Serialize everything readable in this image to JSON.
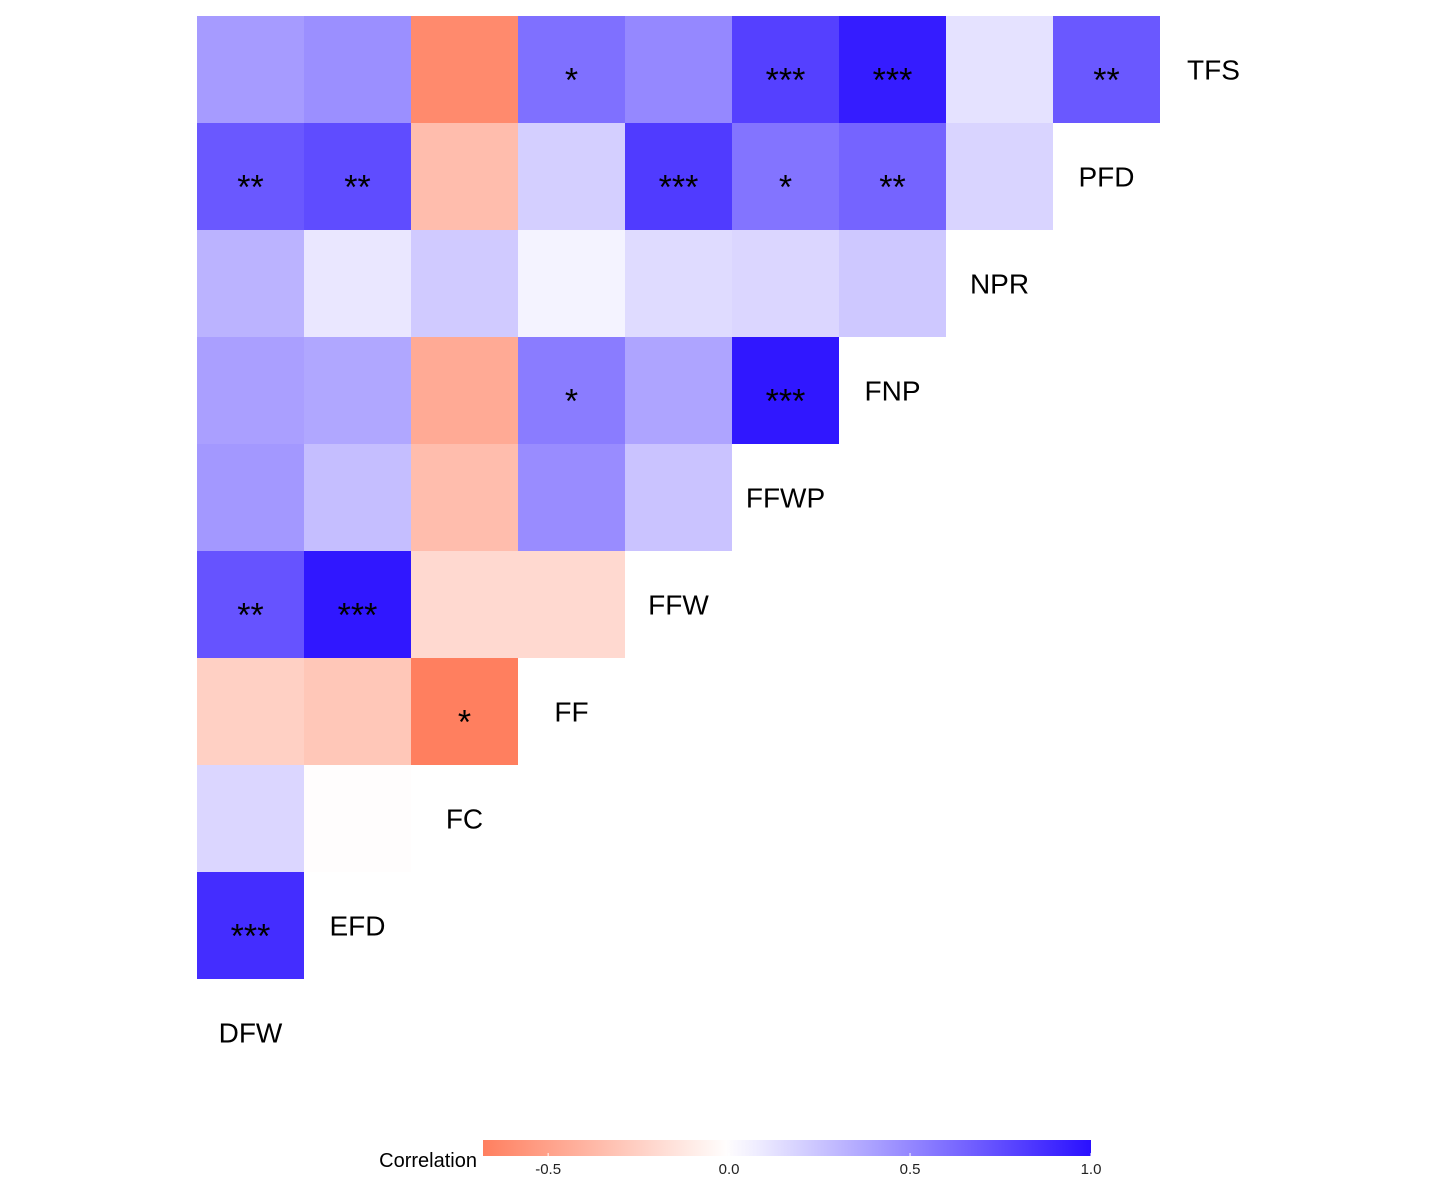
{
  "chart_data": {
    "type": "heatmap",
    "variables": [
      "DFW",
      "EFD",
      "FC",
      "FF",
      "FFW",
      "FFWP",
      "FNP",
      "NPR",
      "PFD",
      "TFS"
    ],
    "cells": [
      {
        "row": "TFS",
        "col": "DFW",
        "value": 0.42,
        "sig": ""
      },
      {
        "row": "TFS",
        "col": "EFD",
        "value": 0.47,
        "sig": ""
      },
      {
        "row": "TFS",
        "col": "FC",
        "value": -0.62,
        "sig": ""
      },
      {
        "row": "TFS",
        "col": "FF",
        "value": 0.6,
        "sig": "*"
      },
      {
        "row": "TFS",
        "col": "FFW",
        "value": 0.5,
        "sig": ""
      },
      {
        "row": "TFS",
        "col": "FFWP",
        "value": 0.8,
        "sig": "***"
      },
      {
        "row": "TFS",
        "col": "FNP",
        "value": 0.95,
        "sig": "***"
      },
      {
        "row": "TFS",
        "col": "NPR",
        "value": 0.12,
        "sig": ""
      },
      {
        "row": "TFS",
        "col": "PFD",
        "value": 0.7,
        "sig": "**"
      },
      {
        "row": "PFD",
        "col": "DFW",
        "value": 0.7,
        "sig": "**"
      },
      {
        "row": "PFD",
        "col": "EFD",
        "value": 0.75,
        "sig": "**"
      },
      {
        "row": "PFD",
        "col": "FC",
        "value": -0.35,
        "sig": ""
      },
      {
        "row": "PFD",
        "col": "FF",
        "value": 0.2,
        "sig": ""
      },
      {
        "row": "PFD",
        "col": "FFW",
        "value": 0.82,
        "sig": "***"
      },
      {
        "row": "PFD",
        "col": "FFWP",
        "value": 0.58,
        "sig": "*"
      },
      {
        "row": "PFD",
        "col": "FNP",
        "value": 0.65,
        "sig": "**"
      },
      {
        "row": "PFD",
        "col": "NPR",
        "value": 0.18,
        "sig": ""
      },
      {
        "row": "NPR",
        "col": "DFW",
        "value": 0.32,
        "sig": ""
      },
      {
        "row": "NPR",
        "col": "EFD",
        "value": 0.1,
        "sig": ""
      },
      {
        "row": "NPR",
        "col": "FC",
        "value": 0.22,
        "sig": ""
      },
      {
        "row": "NPR",
        "col": "FF",
        "value": 0.05,
        "sig": ""
      },
      {
        "row": "NPR",
        "col": "FFW",
        "value": 0.15,
        "sig": ""
      },
      {
        "row": "NPR",
        "col": "FFWP",
        "value": 0.17,
        "sig": ""
      },
      {
        "row": "NPR",
        "col": "FNP",
        "value": 0.23,
        "sig": ""
      },
      {
        "row": "FNP",
        "col": "DFW",
        "value": 0.4,
        "sig": ""
      },
      {
        "row": "FNP",
        "col": "EFD",
        "value": 0.37,
        "sig": ""
      },
      {
        "row": "FNP",
        "col": "FC",
        "value": -0.45,
        "sig": ""
      },
      {
        "row": "FNP",
        "col": "FF",
        "value": 0.55,
        "sig": "*"
      },
      {
        "row": "FNP",
        "col": "FFW",
        "value": 0.38,
        "sig": ""
      },
      {
        "row": "FNP",
        "col": "FFWP",
        "value": 0.97,
        "sig": "***"
      },
      {
        "row": "FFWP",
        "col": "DFW",
        "value": 0.43,
        "sig": ""
      },
      {
        "row": "FFWP",
        "col": "EFD",
        "value": 0.27,
        "sig": ""
      },
      {
        "row": "FFWP",
        "col": "FC",
        "value": -0.35,
        "sig": ""
      },
      {
        "row": "FFWP",
        "col": "FF",
        "value": 0.48,
        "sig": ""
      },
      {
        "row": "FFWP",
        "col": "FFW",
        "value": 0.25,
        "sig": ""
      },
      {
        "row": "FFW",
        "col": "DFW",
        "value": 0.72,
        "sig": "**"
      },
      {
        "row": "FFW",
        "col": "EFD",
        "value": 0.97,
        "sig": "***"
      },
      {
        "row": "FFW",
        "col": "FC",
        "value": -0.2,
        "sig": ""
      },
      {
        "row": "FFW",
        "col": "FF",
        "value": -0.2,
        "sig": ""
      },
      {
        "row": "FF",
        "col": "DFW",
        "value": -0.25,
        "sig": ""
      },
      {
        "row": "FF",
        "col": "EFD",
        "value": -0.3,
        "sig": ""
      },
      {
        "row": "FF",
        "col": "FC",
        "value": -0.7,
        "sig": "*"
      },
      {
        "row": "FC",
        "col": "DFW",
        "value": 0.17,
        "sig": ""
      },
      {
        "row": "FC",
        "col": "EFD",
        "value": -0.01,
        "sig": ""
      },
      {
        "row": "EFD",
        "col": "DFW",
        "value": 0.88,
        "sig": "***"
      }
    ],
    "legend": {
      "title": "Correlation",
      "ticks": [
        -0.5,
        0.0,
        0.5,
        1.0
      ],
      "tick_labels": [
        "-0.5",
        "0.0",
        "0.5",
        "1.0"
      ],
      "range": [
        -0.68,
        1.0
      ],
      "placement": "bottom"
    },
    "colors": {
      "low": "#ff7f5f",
      "mid": "#ffffff",
      "high": "#2a10ff"
    }
  }
}
